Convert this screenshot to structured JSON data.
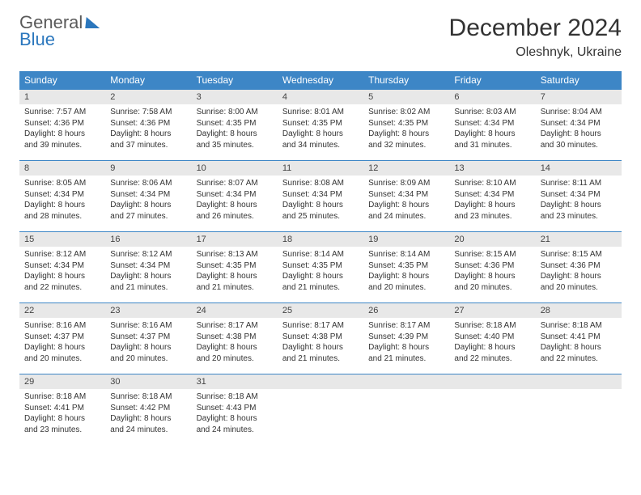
{
  "brand": {
    "word1": "General",
    "word2": "Blue"
  },
  "title": "December 2024",
  "location": "Oleshnyk, Ukraine",
  "colors": {
    "header_bg": "#3d86c6",
    "header_text": "#ffffff",
    "daynum_bg": "#e8e8e8",
    "row_border": "#3d86c6",
    "body_text": "#333333",
    "brand_gray": "#5a5a5a",
    "brand_blue": "#2b77bd",
    "page_bg": "#ffffff"
  },
  "typography": {
    "title_fontsize": 30,
    "location_fontsize": 16,
    "dayheader_fontsize": 12,
    "daynum_fontsize": 11,
    "body_fontsize": 10
  },
  "day_headers": [
    "Sunday",
    "Monday",
    "Tuesday",
    "Wednesday",
    "Thursday",
    "Friday",
    "Saturday"
  ],
  "weeks": [
    [
      {
        "n": "1",
        "sunrise": "7:57 AM",
        "sunset": "4:36 PM",
        "daylight": "8 hours and 39 minutes."
      },
      {
        "n": "2",
        "sunrise": "7:58 AM",
        "sunset": "4:36 PM",
        "daylight": "8 hours and 37 minutes."
      },
      {
        "n": "3",
        "sunrise": "8:00 AM",
        "sunset": "4:35 PM",
        "daylight": "8 hours and 35 minutes."
      },
      {
        "n": "4",
        "sunrise": "8:01 AM",
        "sunset": "4:35 PM",
        "daylight": "8 hours and 34 minutes."
      },
      {
        "n": "5",
        "sunrise": "8:02 AM",
        "sunset": "4:35 PM",
        "daylight": "8 hours and 32 minutes."
      },
      {
        "n": "6",
        "sunrise": "8:03 AM",
        "sunset": "4:34 PM",
        "daylight": "8 hours and 31 minutes."
      },
      {
        "n": "7",
        "sunrise": "8:04 AM",
        "sunset": "4:34 PM",
        "daylight": "8 hours and 30 minutes."
      }
    ],
    [
      {
        "n": "8",
        "sunrise": "8:05 AM",
        "sunset": "4:34 PM",
        "daylight": "8 hours and 28 minutes."
      },
      {
        "n": "9",
        "sunrise": "8:06 AM",
        "sunset": "4:34 PM",
        "daylight": "8 hours and 27 minutes."
      },
      {
        "n": "10",
        "sunrise": "8:07 AM",
        "sunset": "4:34 PM",
        "daylight": "8 hours and 26 minutes."
      },
      {
        "n": "11",
        "sunrise": "8:08 AM",
        "sunset": "4:34 PM",
        "daylight": "8 hours and 25 minutes."
      },
      {
        "n": "12",
        "sunrise": "8:09 AM",
        "sunset": "4:34 PM",
        "daylight": "8 hours and 24 minutes."
      },
      {
        "n": "13",
        "sunrise": "8:10 AM",
        "sunset": "4:34 PM",
        "daylight": "8 hours and 23 minutes."
      },
      {
        "n": "14",
        "sunrise": "8:11 AM",
        "sunset": "4:34 PM",
        "daylight": "8 hours and 23 minutes."
      }
    ],
    [
      {
        "n": "15",
        "sunrise": "8:12 AM",
        "sunset": "4:34 PM",
        "daylight": "8 hours and 22 minutes."
      },
      {
        "n": "16",
        "sunrise": "8:12 AM",
        "sunset": "4:34 PM",
        "daylight": "8 hours and 21 minutes."
      },
      {
        "n": "17",
        "sunrise": "8:13 AM",
        "sunset": "4:35 PM",
        "daylight": "8 hours and 21 minutes."
      },
      {
        "n": "18",
        "sunrise": "8:14 AM",
        "sunset": "4:35 PM",
        "daylight": "8 hours and 21 minutes."
      },
      {
        "n": "19",
        "sunrise": "8:14 AM",
        "sunset": "4:35 PM",
        "daylight": "8 hours and 20 minutes."
      },
      {
        "n": "20",
        "sunrise": "8:15 AM",
        "sunset": "4:36 PM",
        "daylight": "8 hours and 20 minutes."
      },
      {
        "n": "21",
        "sunrise": "8:15 AM",
        "sunset": "4:36 PM",
        "daylight": "8 hours and 20 minutes."
      }
    ],
    [
      {
        "n": "22",
        "sunrise": "8:16 AM",
        "sunset": "4:37 PM",
        "daylight": "8 hours and 20 minutes."
      },
      {
        "n": "23",
        "sunrise": "8:16 AM",
        "sunset": "4:37 PM",
        "daylight": "8 hours and 20 minutes."
      },
      {
        "n": "24",
        "sunrise": "8:17 AM",
        "sunset": "4:38 PM",
        "daylight": "8 hours and 20 minutes."
      },
      {
        "n": "25",
        "sunrise": "8:17 AM",
        "sunset": "4:38 PM",
        "daylight": "8 hours and 21 minutes."
      },
      {
        "n": "26",
        "sunrise": "8:17 AM",
        "sunset": "4:39 PM",
        "daylight": "8 hours and 21 minutes."
      },
      {
        "n": "27",
        "sunrise": "8:18 AM",
        "sunset": "4:40 PM",
        "daylight": "8 hours and 22 minutes."
      },
      {
        "n": "28",
        "sunrise": "8:18 AM",
        "sunset": "4:41 PM",
        "daylight": "8 hours and 22 minutes."
      }
    ],
    [
      {
        "n": "29",
        "sunrise": "8:18 AM",
        "sunset": "4:41 PM",
        "daylight": "8 hours and 23 minutes."
      },
      {
        "n": "30",
        "sunrise": "8:18 AM",
        "sunset": "4:42 PM",
        "daylight": "8 hours and 24 minutes."
      },
      {
        "n": "31",
        "sunrise": "8:18 AM",
        "sunset": "4:43 PM",
        "daylight": "8 hours and 24 minutes."
      },
      null,
      null,
      null,
      null
    ]
  ],
  "labels": {
    "sunrise": "Sunrise: ",
    "sunset": "Sunset: ",
    "daylight": "Daylight: "
  }
}
